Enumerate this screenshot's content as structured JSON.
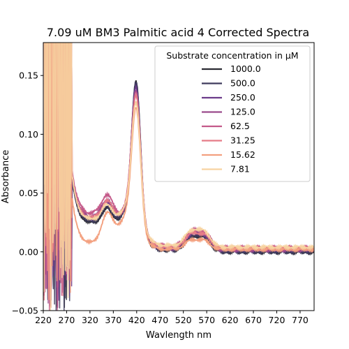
{
  "chart_data": {
    "type": "line",
    "title": "7.09 uM BM3 Palmitic acid 4 Corrected Spectra",
    "xlabel": "Wavlength nm",
    "ylabel": "Absorbance",
    "xlim": [
      220,
      800
    ],
    "ylim": [
      -0.05,
      0.178
    ],
    "xticks": [
      220,
      270,
      320,
      370,
      420,
      470,
      520,
      570,
      620,
      670,
      720,
      770
    ],
    "yticks": [
      -0.05,
      0.0,
      0.05,
      0.1,
      0.15
    ],
    "ytick_labels": [
      "−0.05",
      "0.00",
      "0.05",
      "0.10",
      "0.15"
    ],
    "grid": false,
    "legend": {
      "title": "Substrate concentration in µM",
      "placement": "top-right"
    },
    "series": [
      {
        "name": "1000.0",
        "color": "#2b2b33",
        "soret": 0.162,
        "trough": 0.029,
        "shoulder": 0.053,
        "qband": 0.012,
        "tail": 0.0
      },
      {
        "name": "500.0",
        "color": "#3d3a5c",
        "soret": 0.161,
        "trough": 0.03,
        "shoulder": 0.055,
        "qband": 0.013,
        "tail": 0.0
      },
      {
        "name": "250.0",
        "color": "#6b3b8a",
        "soret": 0.155,
        "trough": 0.031,
        "shoulder": 0.058,
        "qband": 0.015,
        "tail": 0.002
      },
      {
        "name": "125.0",
        "color": "#9b4a8c",
        "soret": 0.152,
        "trough": 0.032,
        "shoulder": 0.06,
        "qband": 0.016,
        "tail": 0.002
      },
      {
        "name": "62.5",
        "color": "#c45a8a",
        "soret": 0.15,
        "trough": 0.034,
        "shoulder": 0.064,
        "qband": 0.017,
        "tail": 0.003
      },
      {
        "name": "31.25",
        "color": "#e57b87",
        "soret": 0.148,
        "trough": 0.03,
        "shoulder": 0.057,
        "qband": 0.015,
        "tail": 0.003
      },
      {
        "name": "15.62",
        "color": "#f3a07f",
        "soret": 0.142,
        "trough": 0.01,
        "shoulder": 0.04,
        "qband": 0.01,
        "tail": 0.002
      },
      {
        "name": "7.81",
        "color": "#f7d3a1",
        "soret": 0.14,
        "trough": 0.028,
        "shoulder": 0.052,
        "qband": 0.018,
        "tail": 0.004
      }
    ]
  }
}
